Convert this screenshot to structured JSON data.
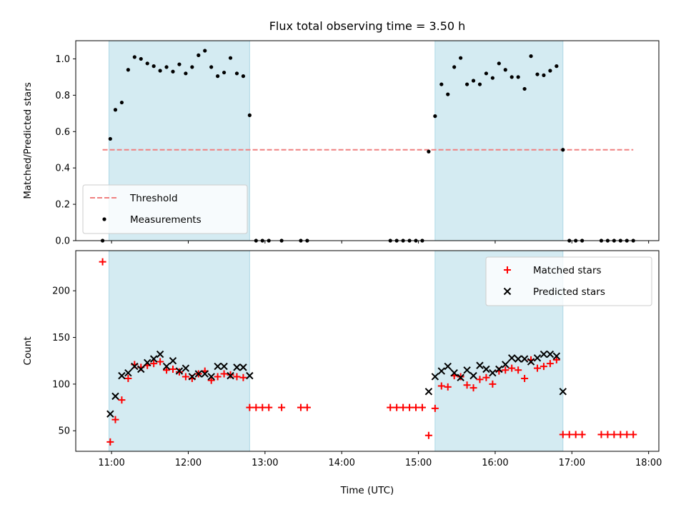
{
  "chart_data": {
    "title": "Flux total observing time = 3.50 h",
    "xlabel": "Time (UTC)",
    "x_ticks": [
      "11:00",
      "12:00",
      "13:00",
      "14:00",
      "15:00",
      "16:00",
      "17:00",
      "18:00"
    ],
    "x_range": [
      "10:32",
      "18:08"
    ],
    "shaded_intervals": [
      [
        "10:58",
        "12:48"
      ],
      [
        "15:13",
        "16:53"
      ]
    ],
    "shade_color": "#add8e6",
    "panels": [
      {
        "type": "scatter",
        "ylabel": "Matched/Predicted stars",
        "ylim": [
          0,
          1.1
        ],
        "y_ticks": [
          "0.0",
          "0.2",
          "0.4",
          "0.6",
          "0.8",
          "1.0"
        ],
        "legend": "lower-left",
        "series": [
          {
            "name": "Threshold",
            "kind": "line",
            "style": "dashed",
            "color": "#f08080",
            "x_range": [
              "10:53",
              "17:48"
            ],
            "y": 0.5
          },
          {
            "name": "Measurements",
            "kind": "points",
            "marker": "dot",
            "color": "#000000",
            "x": [
              "10:53",
              "10:59",
              "11:03",
              "11:08",
              "11:13",
              "11:18",
              "11:23",
              "11:28",
              "11:33",
              "11:38",
              "11:43",
              "11:48",
              "11:53",
              "11:58",
              "12:03",
              "12:08",
              "12:13",
              "12:18",
              "12:23",
              "12:28",
              "12:33",
              "12:38",
              "12:43",
              "12:48",
              "12:53",
              "12:58",
              "13:03",
              "13:13",
              "13:28",
              "13:33",
              "14:38",
              "14:43",
              "14:48",
              "14:53",
              "14:58",
              "15:03",
              "15:08",
              "15:13",
              "15:18",
              "15:23",
              "15:28",
              "15:33",
              "15:38",
              "15:43",
              "15:48",
              "15:53",
              "15:58",
              "16:03",
              "16:08",
              "16:13",
              "16:18",
              "16:23",
              "16:28",
              "16:33",
              "16:38",
              "16:43",
              "16:48",
              "16:53",
              "16:58",
              "17:03",
              "17:08",
              "17:23",
              "17:28",
              "17:33",
              "17:38",
              "17:43",
              "17:48"
            ],
            "y": [
              0,
              0.56,
              0.72,
              0.76,
              0.94,
              1.01,
              1.0,
              0.975,
              0.96,
              0.935,
              0.955,
              0.93,
              0.97,
              0.92,
              0.955,
              1.02,
              1.045,
              0.955,
              0.905,
              0.925,
              1.005,
              0.92,
              0.905,
              0.69,
              0,
              0,
              0,
              0,
              0,
              0,
              0,
              0,
              0,
              0,
              0,
              0,
              0.49,
              0.685,
              0.86,
              0.805,
              0.955,
              1.005,
              0.86,
              0.88,
              0.86,
              0.92,
              0.895,
              0.975,
              0.94,
              0.9,
              0.9,
              0.835,
              1.015,
              0.915,
              0.91,
              0.935,
              0.96,
              0.5,
              0,
              0,
              0,
              0,
              0,
              0,
              0,
              0,
              0
            ]
          }
        ]
      },
      {
        "type": "scatter",
        "ylabel": "Count",
        "ylim": [
          28,
          243
        ],
        "y_ticks": [
          "50",
          "100",
          "150",
          "200"
        ],
        "legend": "top-right",
        "series": [
          {
            "name": "Matched stars",
            "kind": "points",
            "marker": "plus",
            "color": "#ff0000",
            "x": [
              "10:53",
              "10:59",
              "11:03",
              "11:08",
              "11:13",
              "11:18",
              "11:23",
              "11:28",
              "11:33",
              "11:38",
              "11:43",
              "11:48",
              "11:53",
              "11:58",
              "12:03",
              "12:08",
              "12:13",
              "12:18",
              "12:23",
              "12:28",
              "12:33",
              "12:38",
              "12:43",
              "12:48",
              "12:53",
              "12:58",
              "13:03",
              "13:13",
              "13:28",
              "13:33",
              "14:38",
              "14:43",
              "14:48",
              "14:53",
              "14:58",
              "15:03",
              "15:08",
              "15:13",
              "15:18",
              "15:23",
              "15:28",
              "15:33",
              "15:38",
              "15:43",
              "15:48",
              "15:53",
              "15:58",
              "16:03",
              "16:08",
              "16:13",
              "16:18",
              "16:23",
              "16:28",
              "16:33",
              "16:38",
              "16:43",
              "16:48",
              "16:53",
              "16:58",
              "17:03",
              "17:08",
              "17:23",
              "17:28",
              "17:33",
              "17:38",
              "17:43",
              "17:48"
            ],
            "y": [
              231,
              38,
              62,
              83,
              106,
              121,
              118,
              120,
              122,
              124,
              115,
              116,
              113,
              108,
              106,
              111,
              114,
              104,
              108,
              111,
              110,
              108,
              107,
              75,
              75,
              75,
              75,
              75,
              75,
              75,
              75,
              75,
              75,
              75,
              75,
              75,
              45,
              74,
              98,
              97,
              109,
              108,
              99,
              96,
              105,
              107,
              100,
              114,
              115,
              117,
              115,
              106,
              126,
              117,
              119,
              122,
              126,
              46,
              46,
              46,
              46,
              46,
              46,
              46,
              46,
              46,
              46
            ]
          },
          {
            "name": "Predicted stars",
            "kind": "points",
            "marker": "x",
            "color": "#000000",
            "x": [
              "10:59",
              "11:03",
              "11:08",
              "11:13",
              "11:18",
              "11:23",
              "11:28",
              "11:33",
              "11:38",
              "11:43",
              "11:48",
              "11:53",
              "11:58",
              "12:03",
              "12:08",
              "12:13",
              "12:18",
              "12:23",
              "12:28",
              "12:33",
              "12:38",
              "12:43",
              "12:48",
              "15:08",
              "15:13",
              "15:18",
              "15:23",
              "15:28",
              "15:33",
              "15:38",
              "15:43",
              "15:48",
              "15:53",
              "15:58",
              "16:03",
              "16:08",
              "16:13",
              "16:18",
              "16:23",
              "16:28",
              "16:33",
              "16:38",
              "16:43",
              "16:48",
              "16:53"
            ],
            "y": [
              68,
              87,
              109,
              112,
              119,
              116,
              123,
              127,
              132,
              119,
              125,
              114,
              117,
              108,
              111,
              111,
              108,
              119,
              119,
              109,
              118,
              118,
              109,
              92,
              108,
              114,
              119,
              112,
              107,
              115,
              109,
              120,
              116,
              112,
              116,
              121,
              128,
              127,
              127,
              124,
              128,
              132,
              132,
              130,
              92
            ]
          }
        ]
      }
    ]
  }
}
